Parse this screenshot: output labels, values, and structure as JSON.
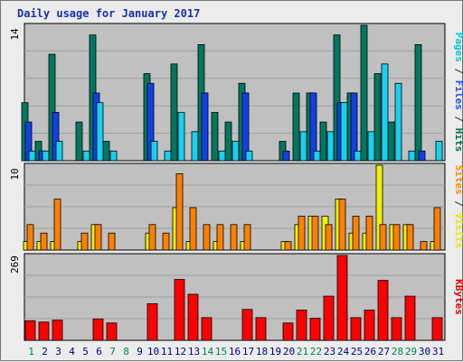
{
  "chart_data": {
    "type": "bar",
    "title": "Daily usage for January 2017",
    "categories": [
      "1",
      "2",
      "3",
      "4",
      "5",
      "6",
      "7",
      "8",
      "9",
      "10",
      "11",
      "12",
      "13",
      "14",
      "15",
      "16",
      "17",
      "18",
      "19",
      "20",
      "21",
      "22",
      "23",
      "24",
      "25",
      "26",
      "27",
      "28",
      "29",
      "30",
      "31"
    ],
    "weekend_days": [
      "1",
      "7",
      "8",
      "14",
      "15",
      "21",
      "22",
      "28",
      "29"
    ],
    "panels": [
      {
        "ymax_label": "14",
        "ymax": 14,
        "side_labels": [
          {
            "text": "Pages",
            "color": "#00c8d8"
          },
          {
            "text": " / ",
            "color": "#333333"
          },
          {
            "text": "Files",
            "color": "#2050e8"
          },
          {
            "text": " / ",
            "color": "#333333"
          },
          {
            "text": "Hits",
            "color": "#007050"
          }
        ],
        "series": [
          {
            "name": "Hits",
            "color": "#007860",
            "values": [
              6,
              2,
              11,
              0,
              4,
              13,
              2,
              0,
              0,
              9,
              0,
              10,
              0,
              12,
              5,
              4,
              8,
              0,
              0,
              2,
              7,
              7,
              4,
              13,
              7,
              14,
              9,
              4,
              0,
              12,
              0
            ]
          },
          {
            "name": "Files",
            "color": "#1040e8",
            "values": [
              4,
              1,
              5,
              0,
              0,
              7,
              0,
              0,
              0,
              8,
              0,
              0,
              0,
              7,
              0,
              0,
              7,
              0,
              0,
              1,
              0,
              7,
              0,
              6,
              7,
              0,
              0,
              0,
              0,
              1,
              0
            ]
          },
          {
            "name": "Pages",
            "color": "#18d0f0",
            "values": [
              1,
              1,
              2,
              0,
              1,
              6,
              1,
              0,
              0,
              2,
              1,
              5,
              3,
              0,
              1,
              2,
              1,
              0,
              0,
              0,
              3,
              1,
              3,
              6,
              1,
              3,
              10,
              8,
              1,
              0,
              2
            ]
          }
        ]
      },
      {
        "ymax_label": "10",
        "ymax": 10,
        "side_labels": [
          {
            "text": "Sites",
            "color": "#ff8800"
          },
          {
            "text": " / ",
            "color": "#333333"
          },
          {
            "text": "Visits",
            "color": "#e8e800"
          }
        ],
        "series": [
          {
            "name": "Visits",
            "color": "#f0f000",
            "values": [
              1,
              1,
              1,
              0,
              1,
              3,
              0,
              0,
              0,
              2,
              0,
              5,
              1,
              0,
              1,
              0,
              1,
              0,
              0,
              1,
              3,
              4,
              4,
              6,
              2,
              2,
              10,
              3,
              3,
              0,
              1
            ]
          },
          {
            "name": "Sites",
            "color": "#ff8000",
            "values": [
              3,
              2,
              6,
              0,
              2,
              3,
              2,
              0,
              0,
              3,
              2,
              9,
              5,
              3,
              3,
              3,
              3,
              0,
              0,
              1,
              4,
              4,
              3,
              6,
              4,
              4,
              3,
              3,
              3,
              1,
              5
            ]
          }
        ]
      },
      {
        "ymax_label": "269",
        "ymax": 269,
        "side_labels": [
          {
            "text": "KBytes",
            "color": "#e00000"
          }
        ],
        "series": [
          {
            "name": "KBytes",
            "color": "#ff0000",
            "values": [
              62,
              58,
              64,
              0,
              0,
              68,
              55,
              0,
              0,
              116,
              0,
              193,
              146,
              72,
              0,
              0,
              98,
              72,
              0,
              55,
              96,
              70,
              140,
              269,
              72,
              96,
              190,
              72,
              140,
              0,
              72
            ]
          }
        ]
      }
    ]
  },
  "colors": {
    "plot_background": "#c0c0c0",
    "gridline": "#a0a0a0",
    "weekday_label": "#000080",
    "weekend_label": "#00804c"
  }
}
